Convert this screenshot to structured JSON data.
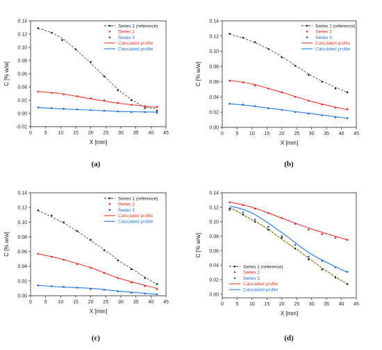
{
  "colors": {
    "series1": "#222222",
    "series2": "#e8241c",
    "series3": "#1f5fd6",
    "calc_red": "#f23a2e",
    "calc_blue": "#1e78f0",
    "dash_d1": "#444444",
    "dash_d2": "#d9b800"
  },
  "chart_data": [
    {
      "panel": "(a)",
      "type": "scatter",
      "xlabel": "X [mm]",
      "ylabel": "C [% w/w]",
      "xlim": [
        0,
        45
      ],
      "ylim": [
        -0.02,
        0.14
      ],
      "xticks": [
        "0",
        "5",
        "10",
        "15",
        "20",
        "25",
        "30",
        "35",
        "40",
        "45"
      ],
      "yticks": [
        "-0.02",
        "0.00",
        "0.02",
        "0.04",
        "0.06",
        "0.08",
        "0.10",
        "0.12",
        "0.14"
      ],
      "legend": [
        "Series 1 (reference)",
        "Series 2",
        "Series 3",
        "Calculated profile",
        "Calculated profile"
      ],
      "legend_position": "top-right",
      "series": [
        {
          "name": "Series 1 (reference)",
          "x": [
            2.5,
            7,
            10.5,
            15,
            20,
            24.5,
            29,
            33.5,
            38,
            42
          ],
          "y": [
            0.129,
            0.122,
            0.111,
            0.097,
            0.078,
            0.056,
            0.035,
            0.02,
            0.008,
            0.004
          ]
        },
        {
          "name": "Series 2",
          "x": [
            2.5,
            7,
            11,
            15.5,
            20,
            24.5,
            29,
            33.5,
            38,
            42
          ],
          "y": [
            0.033,
            0.031,
            0.029,
            0.026,
            0.023,
            0.02,
            0.016,
            0.013,
            0.011,
            0.01
          ]
        },
        {
          "name": "Series 3",
          "x": [
            2.5,
            7,
            11,
            15.5,
            20,
            24.5,
            29,
            33.5,
            38,
            42
          ],
          "y": [
            0.009,
            0.008,
            0.007,
            0.006,
            0.005,
            0.004,
            0.003,
            0.002,
            0.002,
            0.001
          ]
        }
      ],
      "ref_curve": {
        "x": [
          2.5,
          7,
          11,
          15,
          20,
          25,
          30,
          35,
          38,
          42
        ],
        "y": [
          0.129,
          0.122,
          0.112,
          0.097,
          0.076,
          0.054,
          0.033,
          0.017,
          0.01,
          0.007
        ]
      },
      "calculated": [
        {
          "name": "Calculated profile",
          "x": [
            2.5,
            10,
            20,
            30,
            42
          ],
          "y": [
            0.033,
            0.03,
            0.022,
            0.015,
            0.009
          ]
        },
        {
          "name": "Calculated profile",
          "x": [
            2.5,
            10,
            20,
            30,
            42
          ],
          "y": [
            0.009,
            0.007,
            0.005,
            0.003,
            0.002
          ]
        }
      ]
    },
    {
      "panel": "(b)",
      "type": "scatter",
      "xlabel": "X [mm]",
      "ylabel": "C [% w/w]",
      "xlim": [
        0,
        45
      ],
      "ylim": [
        0,
        0.14
      ],
      "xticks": [
        "0",
        "5",
        "10",
        "15",
        "20",
        "25",
        "30",
        "35",
        "40",
        "45"
      ],
      "yticks": [
        "0.00",
        "0.02",
        "0.04",
        "0.06",
        "0.08",
        "0.10",
        "0.12",
        "0.14"
      ],
      "legend": [
        "Series 1 (reference)",
        "Series 2",
        "Series 3",
        "Calculated profile",
        "Calculated profile"
      ],
      "legend_position": "top-right",
      "series": [
        {
          "name": "Series 1 (reference)",
          "x": [
            2.5,
            7,
            11,
            15.5,
            20,
            24.5,
            29,
            33.5,
            38,
            42
          ],
          "y": [
            0.123,
            0.118,
            0.112,
            0.103,
            0.092,
            0.081,
            0.069,
            0.06,
            0.051,
            0.046
          ]
        },
        {
          "name": "Series 2",
          "x": [
            2.5,
            7,
            11,
            15.5,
            20,
            24.5,
            29,
            33.5,
            38,
            42
          ],
          "y": [
            0.061,
            0.059,
            0.055,
            0.051,
            0.046,
            0.04,
            0.035,
            0.03,
            0.026,
            0.024
          ]
        },
        {
          "name": "Series 3",
          "x": [
            2.5,
            7,
            11,
            15.5,
            20,
            24.5,
            29,
            33.5,
            38,
            42
          ],
          "y": [
            0.031,
            0.03,
            0.028,
            0.025,
            0.023,
            0.02,
            0.018,
            0.016,
            0.013,
            0.012
          ]
        }
      ],
      "ref_curve": {
        "x": [
          2.5,
          10,
          15,
          20,
          25,
          30,
          35,
          42
        ],
        "y": [
          0.123,
          0.113,
          0.104,
          0.093,
          0.08,
          0.068,
          0.058,
          0.046
        ]
      },
      "calculated": [
        {
          "name": "Calculated profile",
          "x": [
            2.5,
            10,
            20,
            30,
            42
          ],
          "y": [
            0.062,
            0.057,
            0.046,
            0.034,
            0.023
          ]
        },
        {
          "name": "Calculated profile",
          "x": [
            2.5,
            10,
            20,
            30,
            42
          ],
          "y": [
            0.031,
            0.028,
            0.023,
            0.018,
            0.012
          ]
        }
      ]
    },
    {
      "panel": "(c)",
      "type": "scatter",
      "xlabel": "X [mm]",
      "ylabel": "C [% w/w]",
      "xlim": [
        0,
        45
      ],
      "ylim": [
        0,
        0.14
      ],
      "xticks": [
        "0",
        "5",
        "10",
        "15",
        "20",
        "25",
        "30",
        "35",
        "40",
        "45"
      ],
      "yticks": [
        "0.00",
        "0.02",
        "0.04",
        "0.06",
        "0.08",
        "0.10",
        "0.12",
        "0.14"
      ],
      "legend": [
        "Series 1 (reference)",
        "Series 2",
        "Series 3",
        "Calculated profile",
        "Calculated profile"
      ],
      "legend_position": "top-right",
      "series": [
        {
          "name": "Series 1 (reference)",
          "x": [
            2.5,
            7,
            11,
            15.5,
            20,
            24.5,
            29,
            33.5,
            38,
            42
          ],
          "y": [
            0.116,
            0.109,
            0.1,
            0.088,
            0.076,
            0.062,
            0.048,
            0.036,
            0.024,
            0.016
          ]
        },
        {
          "name": "Series 2",
          "x": [
            2.5,
            7,
            11,
            15.5,
            20,
            24.5,
            29,
            33.5,
            38,
            42
          ],
          "y": [
            0.057,
            0.053,
            0.049,
            0.043,
            0.038,
            0.031,
            0.024,
            0.018,
            0.013,
            0.009
          ]
        },
        {
          "name": "Series 3",
          "x": [
            2.5,
            7,
            11,
            15.5,
            20,
            24.5,
            29,
            33.5,
            38,
            42
          ],
          "y": [
            0.014,
            0.013,
            0.012,
            0.011,
            0.009,
            0.008,
            0.006,
            0.004,
            0.003,
            0.002
          ]
        }
      ],
      "ref_curve": {
        "x": [
          2.5,
          10,
          15,
          20,
          25,
          30,
          35,
          42
        ],
        "y": [
          0.116,
          0.101,
          0.089,
          0.075,
          0.061,
          0.046,
          0.033,
          0.015
        ]
      },
      "calculated": [
        {
          "name": "Calculated profile",
          "x": [
            2.5,
            10,
            20,
            30,
            42
          ],
          "y": [
            0.057,
            0.05,
            0.038,
            0.023,
            0.01
          ]
        },
        {
          "name": "Calculated profile",
          "x": [
            2.5,
            10,
            20,
            30,
            42
          ],
          "y": [
            0.014,
            0.012,
            0.01,
            0.006,
            0.002
          ]
        }
      ]
    },
    {
      "panel": "(d)",
      "type": "scatter",
      "xlabel": "X [mm]",
      "ylabel": "C [% w/w]",
      "xlim": [
        0,
        45
      ],
      "ylim": [
        -0.005,
        0.14
      ],
      "xticks": [
        "0",
        "5",
        "10",
        "15",
        "20",
        "25",
        "30",
        "35",
        "40",
        "45"
      ],
      "yticks": [
        "0.00",
        "0.02",
        "0.04",
        "0.06",
        "0.08",
        "0.10",
        "0.12",
        "0.14"
      ],
      "legend": [
        "Series 1 (reference)",
        "Series 2",
        "Series 3",
        "Calculated profile",
        "Calculated profile"
      ],
      "legend_position": "bottom-left",
      "series": [
        {
          "name": "Series 1 (reference)",
          "x": [
            2.5,
            7,
            11,
            15.5,
            20,
            24.5,
            29,
            33.5,
            38,
            42
          ],
          "y": [
            0.118,
            0.11,
            0.1,
            0.089,
            0.078,
            0.063,
            0.048,
            0.034,
            0.023,
            0.014
          ]
        },
        {
          "name": "Series 2",
          "x": [
            2.5,
            7,
            11,
            15.5,
            20,
            24.5,
            29,
            33.5,
            38,
            42
          ],
          "y": [
            0.127,
            0.123,
            0.118,
            0.112,
            0.105,
            0.097,
            0.089,
            0.083,
            0.078,
            0.075
          ]
        },
        {
          "name": "Series 3",
          "x": [
            2.5,
            7,
            11,
            15.5,
            20,
            24.5,
            29,
            33.5,
            38,
            42
          ],
          "y": [
            0.116,
            0.113,
            0.103,
            0.093,
            0.08,
            0.068,
            0.052,
            0.046,
            0.037,
            0.031
          ]
        }
      ],
      "ref_curve": {
        "x": [
          2.5,
          10,
          15,
          20,
          25,
          30,
          35,
          42
        ],
        "y": [
          0.12,
          0.103,
          0.091,
          0.076,
          0.062,
          0.047,
          0.032,
          0.014
        ]
      },
      "calculated": [
        {
          "name": "Calculated profile",
          "x": [
            2.5,
            10,
            20,
            30,
            42
          ],
          "y": [
            0.127,
            0.12,
            0.105,
            0.09,
            0.075
          ]
        },
        {
          "name": "Calculated profile",
          "x": [
            2.5,
            10,
            20,
            30,
            42
          ],
          "y": [
            0.122,
            0.112,
            0.085,
            0.055,
            0.03
          ]
        }
      ]
    }
  ]
}
